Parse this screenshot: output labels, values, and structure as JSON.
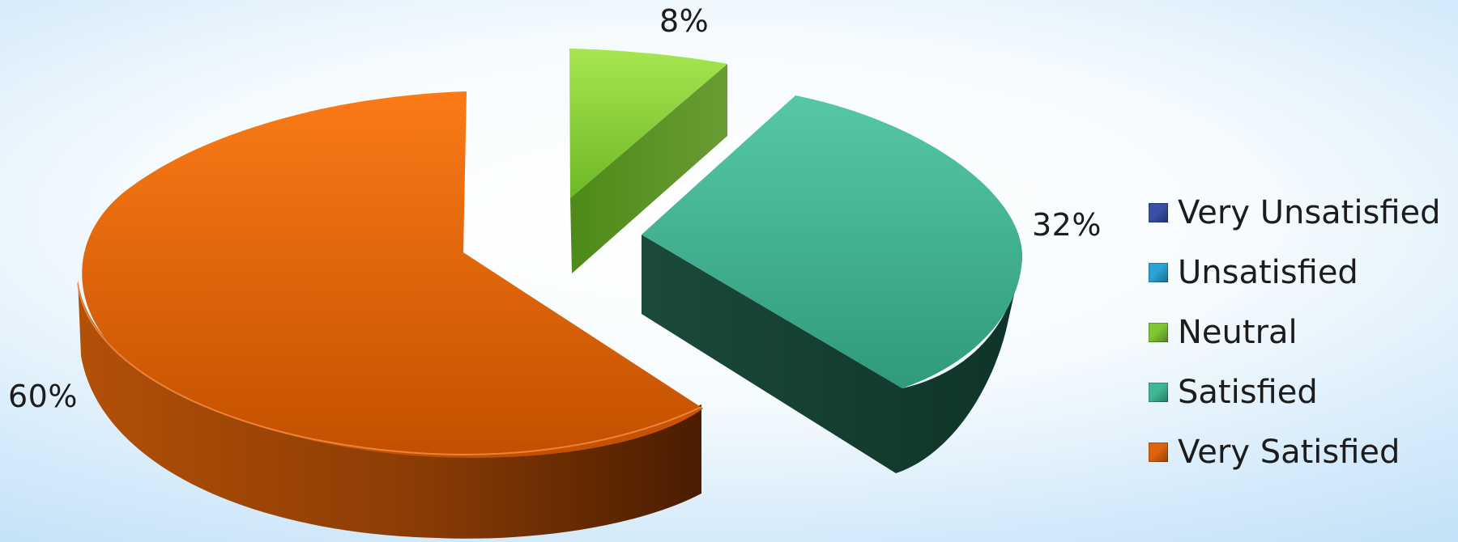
{
  "chart_data": {
    "type": "pie",
    "style": "3d-exploded",
    "categories": [
      "Very Unsatisfied",
      "Unsatisfied",
      "Neutral",
      "Satisfied",
      "Very Satisfied"
    ],
    "values": [
      0,
      0,
      8,
      32,
      60
    ],
    "data_labels": [
      "",
      "",
      "8%",
      "32%",
      "60%"
    ],
    "colors": [
      "#3a4fa8",
      "#2aa3d8",
      "#7ec832",
      "#3fb895",
      "#e0630c"
    ],
    "legend_position": "right",
    "title": ""
  }
}
